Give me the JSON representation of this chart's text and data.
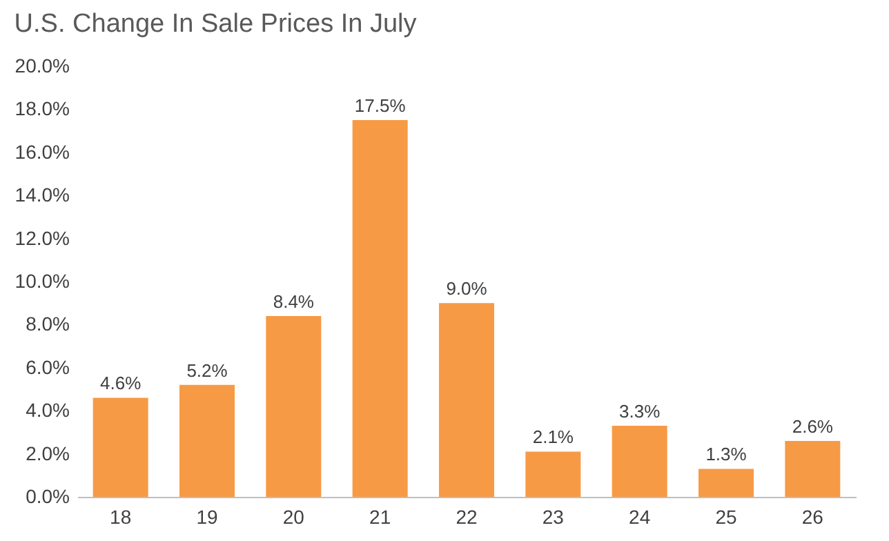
{
  "chart_data": {
    "type": "bar",
    "title": "U.S. Change In Sale Prices In July",
    "categories": [
      "18",
      "19",
      "20",
      "21",
      "22",
      "23",
      "24",
      "25",
      "26"
    ],
    "values": [
      4.6,
      5.2,
      8.4,
      17.5,
      9.0,
      2.1,
      3.3,
      1.3,
      2.6
    ],
    "value_labels": [
      "4.6%",
      "5.2%",
      "8.4%",
      "17.5%",
      "9.0%",
      "2.1%",
      "3.3%",
      "1.3%",
      "2.6%"
    ],
    "color": "#f79a45",
    "ylim": [
      0,
      20
    ],
    "yticks": [
      {
        "value": 0,
        "label": "0.0%"
      },
      {
        "value": 2,
        "label": "2.0%"
      },
      {
        "value": 4,
        "label": "4.0%"
      },
      {
        "value": 6,
        "label": "6.0%"
      },
      {
        "value": 8,
        "label": "8.0%"
      },
      {
        "value": 10,
        "label": "10.0%"
      },
      {
        "value": 12,
        "label": "12.0%"
      },
      {
        "value": 14,
        "label": "14.0%"
      },
      {
        "value": 16,
        "label": "16.0%"
      },
      {
        "value": 18,
        "label": "18.0%"
      },
      {
        "value": 20,
        "label": "20.0%"
      }
    ],
    "grid": false
  }
}
